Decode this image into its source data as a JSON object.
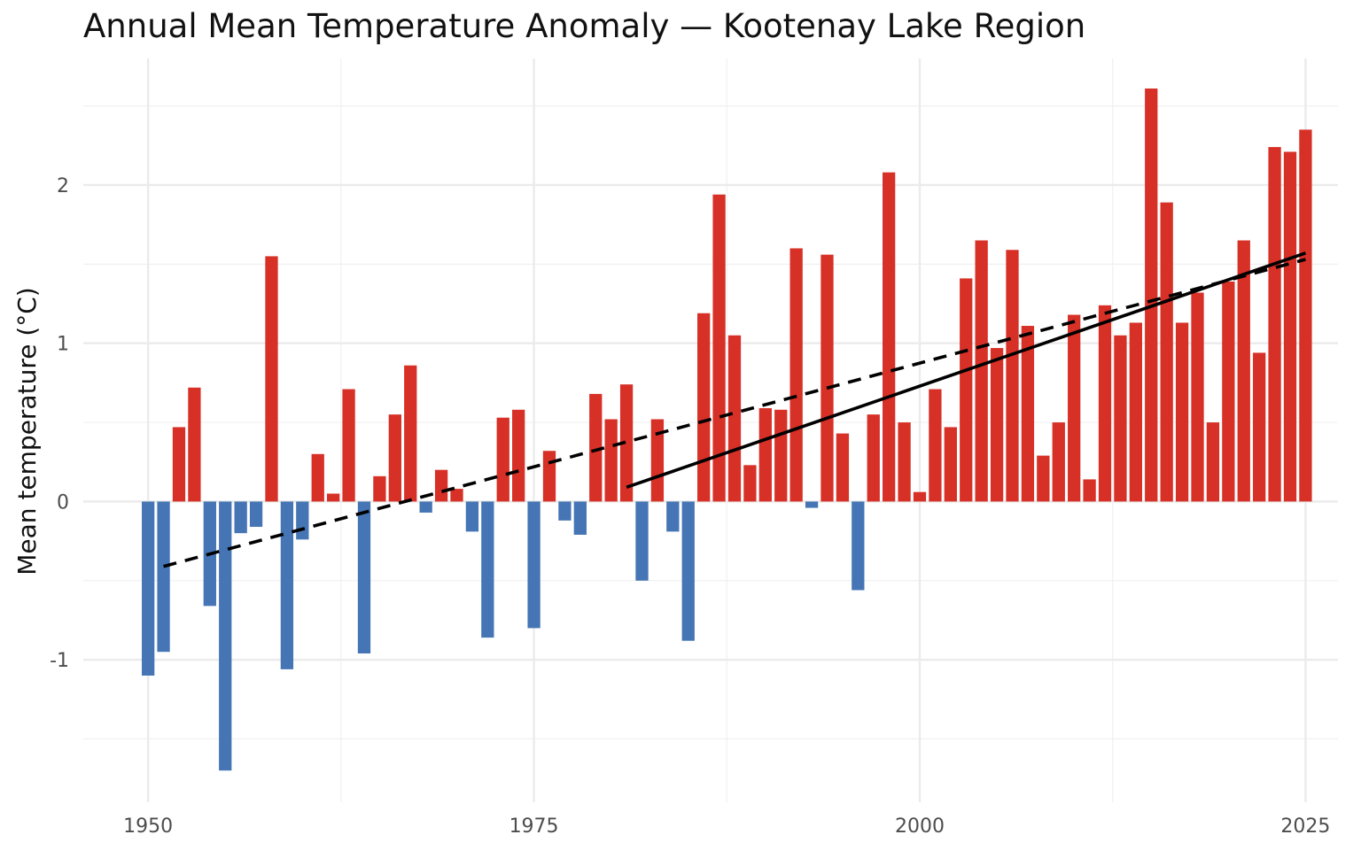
{
  "chart_data": {
    "type": "bar",
    "title": "Annual Mean Temperature Anomaly — Kootenay Lake Region",
    "xlabel": "",
    "ylabel": "Mean temperature (°C)",
    "xlim": [
      1945.8,
      2027.1
    ],
    "ylim": [
      -1.9,
      2.8
    ],
    "xticks": [
      "1950",
      "1975",
      "2000",
      "2025"
    ],
    "yticks": [
      "-1",
      "0",
      "1",
      "2"
    ],
    "grid": true,
    "colors": {
      "positive": "#d73027",
      "negative": "#4575b4",
      "trend": "#000000"
    },
    "x": [
      1950,
      1951,
      1952,
      1953,
      1954,
      1955,
      1956,
      1957,
      1958,
      1959,
      1960,
      1961,
      1962,
      1963,
      1964,
      1965,
      1966,
      1967,
      1968,
      1969,
      1970,
      1971,
      1972,
      1973,
      1974,
      1975,
      1976,
      1977,
      1978,
      1979,
      1980,
      1981,
      1982,
      1983,
      1984,
      1985,
      1986,
      1987,
      1988,
      1989,
      1990,
      1991,
      1992,
      1993,
      1994,
      1995,
      1996,
      1997,
      1998,
      1999,
      2000,
      2001,
      2002,
      2003,
      2004,
      2005,
      2006,
      2007,
      2008,
      2009,
      2010,
      2011,
      2012,
      2013,
      2014,
      2015,
      2016,
      2017,
      2018,
      2019,
      2020,
      2021,
      2022,
      2023,
      2024,
      2025
    ],
    "values": [
      -1.1,
      -0.95,
      0.47,
      0.72,
      -0.66,
      -1.7,
      -0.2,
      -0.16,
      1.55,
      -1.06,
      -0.24,
      0.3,
      0.05,
      0.71,
      -0.96,
      0.16,
      0.55,
      0.86,
      -0.07,
      0.2,
      0.08,
      -0.19,
      -0.86,
      0.53,
      0.58,
      -0.8,
      0.32,
      -0.12,
      -0.21,
      0.68,
      0.52,
      0.74,
      -0.5,
      0.52,
      -0.19,
      -0.88,
      1.19,
      1.94,
      1.05,
      0.23,
      0.59,
      0.58,
      1.6,
      -0.04,
      1.56,
      0.43,
      -0.56,
      0.55,
      2.08,
      0.5,
      0.06,
      0.71,
      0.47,
      1.41,
      1.65,
      0.97,
      1.59,
      1.11,
      0.29,
      0.5,
      1.18,
      0.14,
      1.24,
      1.05,
      1.13,
      2.61,
      1.89,
      1.13,
      1.32,
      0.5,
      1.39,
      1.65,
      0.94,
      2.24,
      2.21,
      2.35
    ],
    "trend_lines": [
      {
        "style": "dashed",
        "x": [
          1951,
          2025
        ],
        "y": [
          -0.41,
          1.53
        ]
      },
      {
        "style": "solid",
        "x": [
          1981,
          2025
        ],
        "y": [
          0.09,
          1.57
        ]
      }
    ]
  }
}
